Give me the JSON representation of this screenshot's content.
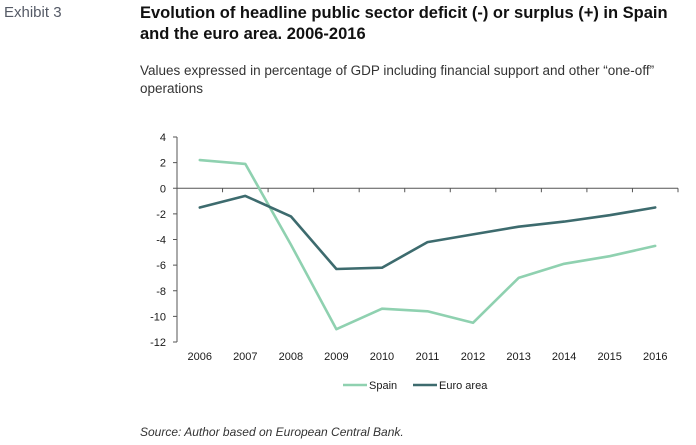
{
  "header": {
    "exhibit": "Exhibit 3",
    "title": "Evolution of headline public sector deficit (-) or surplus (+) in Spain and the euro area. 2006-2016",
    "subtitle": "Values expressed in percentage of GDP including financial support and other “one-off” operations"
  },
  "footer": {
    "source": "Source: Author based on European Central Bank."
  },
  "chart_data": {
    "type": "line",
    "title": "Evolution of headline public sector deficit (-) or surplus (+) in Spain and the euro area. 2006-2016",
    "subtitle": "Values expressed in percentage of GDP including financial support and other “one-off” operations",
    "xlabel": "",
    "ylabel": "",
    "categories": [
      "2006",
      "2007",
      "2008",
      "2009",
      "2010",
      "2011",
      "2012",
      "2013",
      "2014",
      "2015",
      "2016"
    ],
    "series": [
      {
        "name": "Spain",
        "color": "#8fd1b0",
        "values": [
          2.2,
          1.9,
          -4.4,
          -11.0,
          -9.4,
          -9.6,
          -10.5,
          -7.0,
          -5.9,
          -5.3,
          -4.5
        ]
      },
      {
        "name": "Euro area",
        "color": "#3d6b6e",
        "values": [
          -1.5,
          -0.6,
          -2.2,
          -6.3,
          -6.2,
          -4.2,
          -3.6,
          -3.0,
          -2.6,
          -2.1,
          -1.5
        ]
      }
    ],
    "yticks": [
      4,
      2,
      0,
      -2,
      -4,
      -6,
      -8,
      -10,
      -12
    ],
    "ylim": [
      -12,
      4
    ],
    "grid": false,
    "legend": "bottom"
  }
}
